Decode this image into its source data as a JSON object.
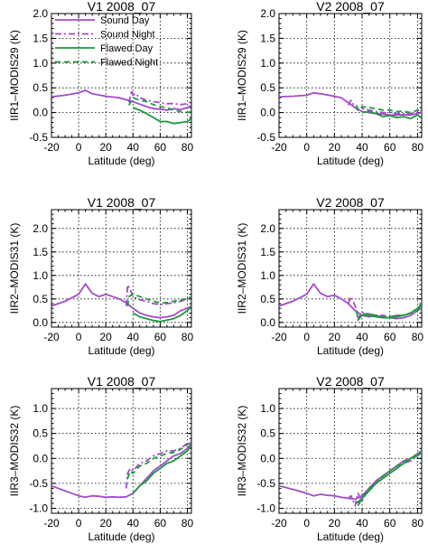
{
  "colors": {
    "sound": "#a34bc9",
    "flawed": "#1a9a3a"
  },
  "chart_data": [
    {
      "type": "line",
      "title": "V1  2008_07",
      "xlabel": "Latitude (deg)",
      "ylabel": "IIR1–MODIS29 (K)",
      "xlim": [
        -20,
        83
      ],
      "ylim": [
        -0.5,
        2.0
      ],
      "grid": true,
      "xticks": [
        "-20",
        "0",
        "20",
        "40",
        "60",
        "80"
      ],
      "yticks": [
        "-0.5",
        "0.0",
        "0.5",
        "1.0",
        "1.5",
        "2.0"
      ],
      "legend": {
        "position": "top-left",
        "entries": [
          "Sound Day",
          "Sound Night",
          "Flawed Day",
          "Flawed Night"
        ]
      },
      "series": [
        {
          "name": "Sound Day",
          "x": [
            -20,
            -10,
            0,
            5,
            10,
            20,
            30,
            40,
            45,
            50,
            55,
            60,
            65,
            70,
            75,
            80,
            83
          ],
          "y": [
            0.32,
            0.35,
            0.4,
            0.45,
            0.38,
            0.33,
            0.3,
            0.22,
            0.17,
            0.12,
            0.08,
            0.07,
            0.05,
            0.08,
            0.06,
            0.1,
            0.15
          ]
        },
        {
          "name": "Sound Night",
          "x": [
            37,
            39,
            40,
            42,
            45,
            50,
            55,
            60,
            65,
            70,
            75,
            80,
            83
          ],
          "y": [
            0.2,
            0.45,
            0.35,
            0.38,
            0.3,
            0.25,
            0.22,
            0.2,
            0.18,
            0.18,
            0.16,
            0.18,
            0.22
          ]
        },
        {
          "name": "Flawed Day",
          "x": [
            40,
            45,
            50,
            55,
            60,
            65,
            70,
            75,
            80,
            83
          ],
          "y": [
            0.1,
            0.05,
            -0.02,
            -0.1,
            -0.18,
            -0.18,
            -0.22,
            -0.2,
            -0.18,
            -0.12
          ]
        },
        {
          "name": "Flawed Night",
          "x": [
            37,
            40,
            45,
            50,
            55,
            60,
            65,
            70,
            75,
            80,
            83
          ],
          "y": [
            0.15,
            0.3,
            0.25,
            0.22,
            0.16,
            0.12,
            0.1,
            0.05,
            0.02,
            0.0,
            0.02
          ]
        }
      ]
    },
    {
      "type": "line",
      "title": "V2  2008_07",
      "xlabel": "Latitude (deg)",
      "ylabel": "IIR1–MODIS29 (K)",
      "xlim": [
        -20,
        83
      ],
      "ylim": [
        -0.5,
        2.0
      ],
      "grid": true,
      "xticks": [
        "-20",
        "0",
        "20",
        "40",
        "60",
        "80"
      ],
      "yticks": [
        "-0.5",
        "0.0",
        "0.5",
        "1.0",
        "1.5",
        "2.0"
      ],
      "series": [
        {
          "name": "Sound Day",
          "x": [
            -20,
            -10,
            0,
            5,
            10,
            20,
            25,
            30,
            35,
            40,
            45,
            50,
            55,
            60,
            65,
            70,
            75,
            80,
            83
          ],
          "y": [
            0.32,
            0.33,
            0.35,
            0.4,
            0.38,
            0.33,
            0.3,
            0.2,
            0.1,
            0.02,
            0.0,
            -0.02,
            -0.03,
            -0.05,
            -0.05,
            -0.04,
            -0.05,
            -0.02,
            0.0
          ]
        },
        {
          "name": "Sound Night",
          "x": [
            30,
            32,
            35,
            37,
            40,
            45,
            50,
            55,
            60,
            65,
            70,
            75,
            80,
            83
          ],
          "y": [
            0.15,
            0.25,
            0.1,
            0.05,
            0.08,
            0.05,
            0.02,
            0.0,
            0.0,
            -0.02,
            -0.03,
            -0.02,
            0.0,
            0.05
          ]
        },
        {
          "name": "Flawed Day",
          "x": [
            40,
            45,
            50,
            55,
            60,
            65,
            70,
            75,
            80,
            83
          ],
          "y": [
            0.0,
            0.02,
            -0.02,
            -0.08,
            -0.06,
            -0.1,
            -0.08,
            -0.12,
            -0.05,
            -0.1
          ]
        },
        {
          "name": "Flawed Night",
          "x": [
            36,
            37,
            40,
            45,
            50,
            55,
            60,
            65,
            70,
            75,
            80,
            83
          ],
          "y": [
            0.15,
            0.05,
            0.12,
            0.1,
            0.08,
            0.05,
            0.05,
            0.02,
            0.03,
            0.0,
            0.05,
            0.02
          ]
        }
      ]
    },
    {
      "type": "line",
      "title": "V1  2008_07",
      "xlabel": "Latitude (deg)",
      "ylabel": "IIR2–MODIS31 (K)",
      "xlim": [
        -20,
        83
      ],
      "ylim": [
        -0.1,
        2.4
      ],
      "grid": true,
      "xticks": [
        "-20",
        "0",
        "20",
        "40",
        "60",
        "80"
      ],
      "yticks": [
        "0.0",
        "0.5",
        "1.0",
        "1.5",
        "2.0"
      ],
      "series": [
        {
          "name": "Sound Day",
          "x": [
            -20,
            -10,
            0,
            5,
            10,
            15,
            20,
            25,
            30,
            35,
            40,
            45,
            50,
            55,
            60,
            65,
            70,
            75,
            80,
            83
          ],
          "y": [
            0.35,
            0.45,
            0.6,
            0.82,
            0.62,
            0.55,
            0.6,
            0.55,
            0.5,
            0.42,
            0.3,
            0.2,
            0.15,
            0.12,
            0.1,
            0.12,
            0.15,
            0.25,
            0.3,
            0.35
          ]
        },
        {
          "name": "Sound Night",
          "x": [
            35,
            36,
            38,
            40,
            45,
            50,
            55,
            60,
            65,
            70,
            75,
            80,
            83
          ],
          "y": [
            0.35,
            0.8,
            0.7,
            0.55,
            0.48,
            0.45,
            0.4,
            0.38,
            0.4,
            0.42,
            0.45,
            0.5,
            0.55
          ]
        },
        {
          "name": "Flawed Day",
          "x": [
            40,
            45,
            50,
            55,
            60,
            65,
            70,
            75,
            80,
            83
          ],
          "y": [
            0.2,
            0.12,
            0.08,
            0.04,
            0.02,
            0.05,
            0.08,
            0.15,
            0.25,
            0.35
          ]
        },
        {
          "name": "Flawed Night",
          "x": [
            36,
            37,
            40,
            45,
            50,
            55,
            60,
            65,
            70,
            75,
            80,
            83
          ],
          "y": [
            0.35,
            0.55,
            0.6,
            0.55,
            0.5,
            0.45,
            0.42,
            0.42,
            0.45,
            0.48,
            0.5,
            0.55
          ]
        }
      ]
    },
    {
      "type": "line",
      "title": "V2  2008_07",
      "xlabel": "Latitude (deg)",
      "ylabel": "IIR2–MODIS31 (K)",
      "xlim": [
        -20,
        83
      ],
      "ylim": [
        -0.1,
        2.4
      ],
      "grid": true,
      "xticks": [
        "-20",
        "0",
        "20",
        "40",
        "60",
        "80"
      ],
      "yticks": [
        "0.0",
        "0.5",
        "1.0",
        "1.5",
        "2.0"
      ],
      "series": [
        {
          "name": "Sound Day",
          "x": [
            -20,
            -10,
            0,
            5,
            10,
            15,
            20,
            25,
            30,
            35,
            40,
            45,
            50,
            55,
            60,
            65,
            70,
            75,
            80,
            83
          ],
          "y": [
            0.35,
            0.45,
            0.6,
            0.82,
            0.62,
            0.55,
            0.58,
            0.5,
            0.4,
            0.25,
            0.15,
            0.12,
            0.15,
            0.1,
            0.1,
            0.08,
            0.1,
            0.15,
            0.25,
            0.4
          ]
        },
        {
          "name": "Sound Night",
          "x": [
            30,
            32,
            35,
            37,
            40,
            45,
            50,
            55,
            60,
            65,
            70,
            75,
            80,
            83
          ],
          "y": [
            0.4,
            0.55,
            0.35,
            0.1,
            0.2,
            0.18,
            0.15,
            0.15,
            0.12,
            0.15,
            0.15,
            0.2,
            0.25,
            0.3
          ]
        },
        {
          "name": "Flawed Day",
          "x": [
            37,
            40,
            45,
            50,
            55,
            60,
            65,
            70,
            75,
            80,
            83
          ],
          "y": [
            0.05,
            0.15,
            0.15,
            0.12,
            0.1,
            0.1,
            0.12,
            0.15,
            0.2,
            0.3,
            0.4
          ]
        },
        {
          "name": "Flawed Night",
          "x": [
            36,
            37,
            40,
            45,
            50,
            55,
            60,
            65,
            70,
            75,
            80,
            83
          ],
          "y": [
            0.25,
            0.05,
            0.18,
            0.18,
            0.15,
            0.12,
            0.12,
            0.15,
            0.15,
            0.2,
            0.25,
            0.35
          ]
        }
      ]
    },
    {
      "type": "line",
      "title": "V1  2008_07",
      "xlabel": "Latitude (deg)",
      "ylabel": "IIR3–MODIS32 (K)",
      "xlim": [
        -20,
        83
      ],
      "ylim": [
        -1.1,
        1.4
      ],
      "grid": true,
      "xticks": [
        "-20",
        "0",
        "20",
        "40",
        "60",
        "80"
      ],
      "yticks": [
        "-1.0",
        "-0.5",
        "0.0",
        "0.5",
        "1.0"
      ],
      "series": [
        {
          "name": "Sound Day",
          "x": [
            -20,
            -10,
            0,
            5,
            10,
            15,
            20,
            25,
            30,
            35,
            40,
            45,
            50,
            55,
            60,
            65,
            70,
            75,
            80,
            83
          ],
          "y": [
            -0.55,
            -0.65,
            -0.75,
            -0.78,
            -0.75,
            -0.76,
            -0.78,
            -0.77,
            -0.78,
            -0.77,
            -0.7,
            -0.55,
            -0.4,
            -0.25,
            -0.15,
            -0.05,
            0.05,
            0.1,
            0.2,
            0.3
          ]
        },
        {
          "name": "Sound Night",
          "x": [
            35,
            36,
            38,
            40,
            45,
            50,
            55,
            60,
            65,
            70,
            75,
            80,
            83
          ],
          "y": [
            -0.6,
            -0.3,
            -0.2,
            -0.25,
            -0.1,
            -0.05,
            0.05,
            0.1,
            0.15,
            0.15,
            0.2,
            0.3,
            0.35
          ]
        },
        {
          "name": "Flawed Day",
          "x": [
            40,
            45,
            50,
            55,
            60,
            65,
            70,
            75,
            80,
            83
          ],
          "y": [
            -0.7,
            -0.55,
            -0.45,
            -0.3,
            -0.2,
            -0.1,
            -0.05,
            0.05,
            0.15,
            0.25
          ]
        },
        {
          "name": "Flawed Night",
          "x": [
            36,
            38,
            40,
            45,
            50,
            55,
            60,
            65,
            70,
            75,
            80,
            83
          ],
          "y": [
            -0.4,
            -0.25,
            -0.3,
            -0.15,
            -0.1,
            0.0,
            0.05,
            0.1,
            0.12,
            0.18,
            0.28,
            0.32
          ]
        }
      ]
    },
    {
      "type": "line",
      "title": "V2  2008_07",
      "xlabel": "Latitude (deg)",
      "ylabel": "IIR3–MODIS32 (K)",
      "xlim": [
        -20,
        83
      ],
      "ylim": [
        -1.1,
        1.4
      ],
      "grid": true,
      "xticks": [
        "-20",
        "0",
        "20",
        "40",
        "60",
        "80"
      ],
      "yticks": [
        "-1.0",
        "-0.5",
        "0.0",
        "0.5",
        "1.0"
      ],
      "series": [
        {
          "name": "Sound Day",
          "x": [
            -20,
            -10,
            0,
            5,
            10,
            15,
            20,
            25,
            30,
            35,
            40,
            45,
            50,
            55,
            60,
            65,
            70,
            75,
            80,
            83
          ],
          "y": [
            -0.55,
            -0.62,
            -0.7,
            -0.75,
            -0.72,
            -0.74,
            -0.75,
            -0.78,
            -0.8,
            -0.82,
            -0.75,
            -0.6,
            -0.45,
            -0.35,
            -0.25,
            -0.15,
            -0.05,
            0.0,
            0.1,
            0.15
          ]
        },
        {
          "name": "Sound Night",
          "x": [
            30,
            32,
            35,
            37,
            40,
            45,
            50,
            55,
            60,
            65,
            70,
            75,
            80,
            83
          ],
          "y": [
            -0.8,
            -0.75,
            -0.95,
            -0.7,
            -0.85,
            -0.6,
            -0.5,
            -0.4,
            -0.3,
            -0.2,
            -0.1,
            -0.05,
            0.05,
            0.12
          ]
        },
        {
          "name": "Flawed Day",
          "x": [
            37,
            40,
            45,
            50,
            55,
            60,
            65,
            70,
            75,
            80,
            83
          ],
          "y": [
            -0.95,
            -0.8,
            -0.65,
            -0.5,
            -0.4,
            -0.3,
            -0.2,
            -0.1,
            0.0,
            0.05,
            0.15
          ]
        },
        {
          "name": "Flawed Night",
          "x": [
            36,
            38,
            40,
            45,
            50,
            55,
            60,
            65,
            70,
            75,
            80,
            83
          ],
          "y": [
            -0.9,
            -0.85,
            -0.8,
            -0.6,
            -0.5,
            -0.35,
            -0.25,
            -0.15,
            -0.08,
            0.0,
            0.08,
            0.15
          ]
        }
      ]
    }
  ]
}
